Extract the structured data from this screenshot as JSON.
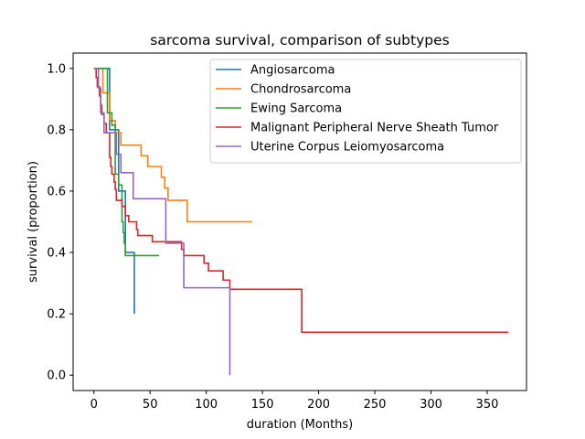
{
  "chart_data": {
    "type": "line",
    "step": true,
    "title": "sarcoma survival, comparison of subtypes",
    "xlabel": "duration (Months)",
    "ylabel": "survival (proportion)",
    "xlim": [
      -18.5,
      385
    ],
    "ylim": [
      -0.05,
      1.05
    ],
    "xticks": [
      0,
      50,
      100,
      150,
      200,
      250,
      300,
      350
    ],
    "xtick_labels": [
      "0",
      "50",
      "100",
      "150",
      "200",
      "250",
      "300",
      "350"
    ],
    "yticks": [
      0.0,
      0.2,
      0.4,
      0.6,
      0.8,
      1.0
    ],
    "ytick_labels": [
      "0.0",
      "0.2",
      "0.4",
      "0.6",
      "0.8",
      "1.0"
    ],
    "grid": false,
    "legend_position": "top-right",
    "series": [
      {
        "name": "Angiosarcoma",
        "color": "#1f77b4",
        "points": [
          [
            0,
            1.0
          ],
          [
            14,
            1.0
          ],
          [
            14,
            0.8
          ],
          [
            22,
            0.8
          ],
          [
            22,
            0.6
          ],
          [
            28,
            0.6
          ],
          [
            28,
            0.4
          ],
          [
            36,
            0.4
          ],
          [
            36,
            0.2
          ]
        ]
      },
      {
        "name": "Chondrosarcoma",
        "color": "#ff7f0e",
        "points": [
          [
            0,
            1.0
          ],
          [
            8,
            1.0
          ],
          [
            8,
            0.92
          ],
          [
            14,
            0.92
          ],
          [
            14,
            0.83
          ],
          [
            19,
            0.83
          ],
          [
            19,
            0.79
          ],
          [
            24,
            0.79
          ],
          [
            24,
            0.75
          ],
          [
            42,
            0.75
          ],
          [
            42,
            0.715
          ],
          [
            48,
            0.715
          ],
          [
            48,
            0.68
          ],
          [
            60,
            0.68
          ],
          [
            60,
            0.645
          ],
          [
            63,
            0.645
          ],
          [
            63,
            0.61
          ],
          [
            66,
            0.61
          ],
          [
            66,
            0.57
          ],
          [
            83,
            0.57
          ],
          [
            83,
            0.5
          ],
          [
            141,
            0.5
          ]
        ]
      },
      {
        "name": "Ewing Sarcoma",
        "color": "#2ca02c",
        "points": [
          [
            0,
            1.0
          ],
          [
            12,
            1.0
          ],
          [
            12,
            0.855
          ],
          [
            16,
            0.855
          ],
          [
            16,
            0.815
          ],
          [
            19,
            0.815
          ],
          [
            19,
            0.655
          ],
          [
            22,
            0.655
          ],
          [
            22,
            0.62
          ],
          [
            25,
            0.62
          ],
          [
            25,
            0.5
          ],
          [
            26,
            0.5
          ],
          [
            26,
            0.465
          ],
          [
            27,
            0.465
          ],
          [
            27,
            0.43
          ],
          [
            28,
            0.43
          ],
          [
            28,
            0.39
          ],
          [
            58,
            0.39
          ]
        ]
      },
      {
        "name": "Malignant Peripheral Nerve Sheath Tumor",
        "color": "#d62728",
        "points": [
          [
            0,
            1.0
          ],
          [
            2,
            1.0
          ],
          [
            2,
            0.97
          ],
          [
            3,
            0.97
          ],
          [
            3,
            0.94
          ],
          [
            5,
            0.94
          ],
          [
            5,
            0.91
          ],
          [
            6,
            0.91
          ],
          [
            6,
            0.88
          ],
          [
            7,
            0.88
          ],
          [
            7,
            0.85
          ],
          [
            9,
            0.85
          ],
          [
            9,
            0.82
          ],
          [
            11,
            0.82
          ],
          [
            11,
            0.79
          ],
          [
            14,
            0.79
          ],
          [
            14,
            0.71
          ],
          [
            15,
            0.71
          ],
          [
            15,
            0.68
          ],
          [
            16,
            0.68
          ],
          [
            16,
            0.655
          ],
          [
            18,
            0.655
          ],
          [
            18,
            0.63
          ],
          [
            19,
            0.63
          ],
          [
            19,
            0.605
          ],
          [
            20,
            0.605
          ],
          [
            20,
            0.57
          ],
          [
            25,
            0.57
          ],
          [
            25,
            0.55
          ],
          [
            28,
            0.55
          ],
          [
            28,
            0.52
          ],
          [
            31,
            0.52
          ],
          [
            31,
            0.5
          ],
          [
            38,
            0.5
          ],
          [
            38,
            0.475
          ],
          [
            39,
            0.475
          ],
          [
            39,
            0.455
          ],
          [
            52,
            0.455
          ],
          [
            52,
            0.435
          ],
          [
            65,
            0.435
          ],
          [
            65,
            0.435
          ],
          [
            78,
            0.435
          ],
          [
            78,
            0.41
          ],
          [
            80,
            0.41
          ],
          [
            80,
            0.39
          ],
          [
            98,
            0.39
          ],
          [
            98,
            0.365
          ],
          [
            102,
            0.365
          ],
          [
            102,
            0.34
          ],
          [
            115,
            0.34
          ],
          [
            115,
            0.31
          ],
          [
            121,
            0.31
          ],
          [
            121,
            0.28
          ],
          [
            185,
            0.28
          ],
          [
            185,
            0.14
          ],
          [
            369,
            0.14
          ]
        ]
      },
      {
        "name": "Uterine Corpus Leiomyosarcoma",
        "color": "#9467bd",
        "points": [
          [
            0,
            1.0
          ],
          [
            4,
            1.0
          ],
          [
            4,
            0.935
          ],
          [
            6,
            0.935
          ],
          [
            6,
            0.855
          ],
          [
            9,
            0.855
          ],
          [
            9,
            0.79
          ],
          [
            20,
            0.79
          ],
          [
            20,
            0.72
          ],
          [
            24,
            0.72
          ],
          [
            24,
            0.66
          ],
          [
            35,
            0.66
          ],
          [
            35,
            0.575
          ],
          [
            64,
            0.575
          ],
          [
            64,
            0.43
          ],
          [
            80,
            0.43
          ],
          [
            80,
            0.285
          ],
          [
            121,
            0.285
          ],
          [
            121,
            0.0
          ]
        ]
      }
    ]
  }
}
